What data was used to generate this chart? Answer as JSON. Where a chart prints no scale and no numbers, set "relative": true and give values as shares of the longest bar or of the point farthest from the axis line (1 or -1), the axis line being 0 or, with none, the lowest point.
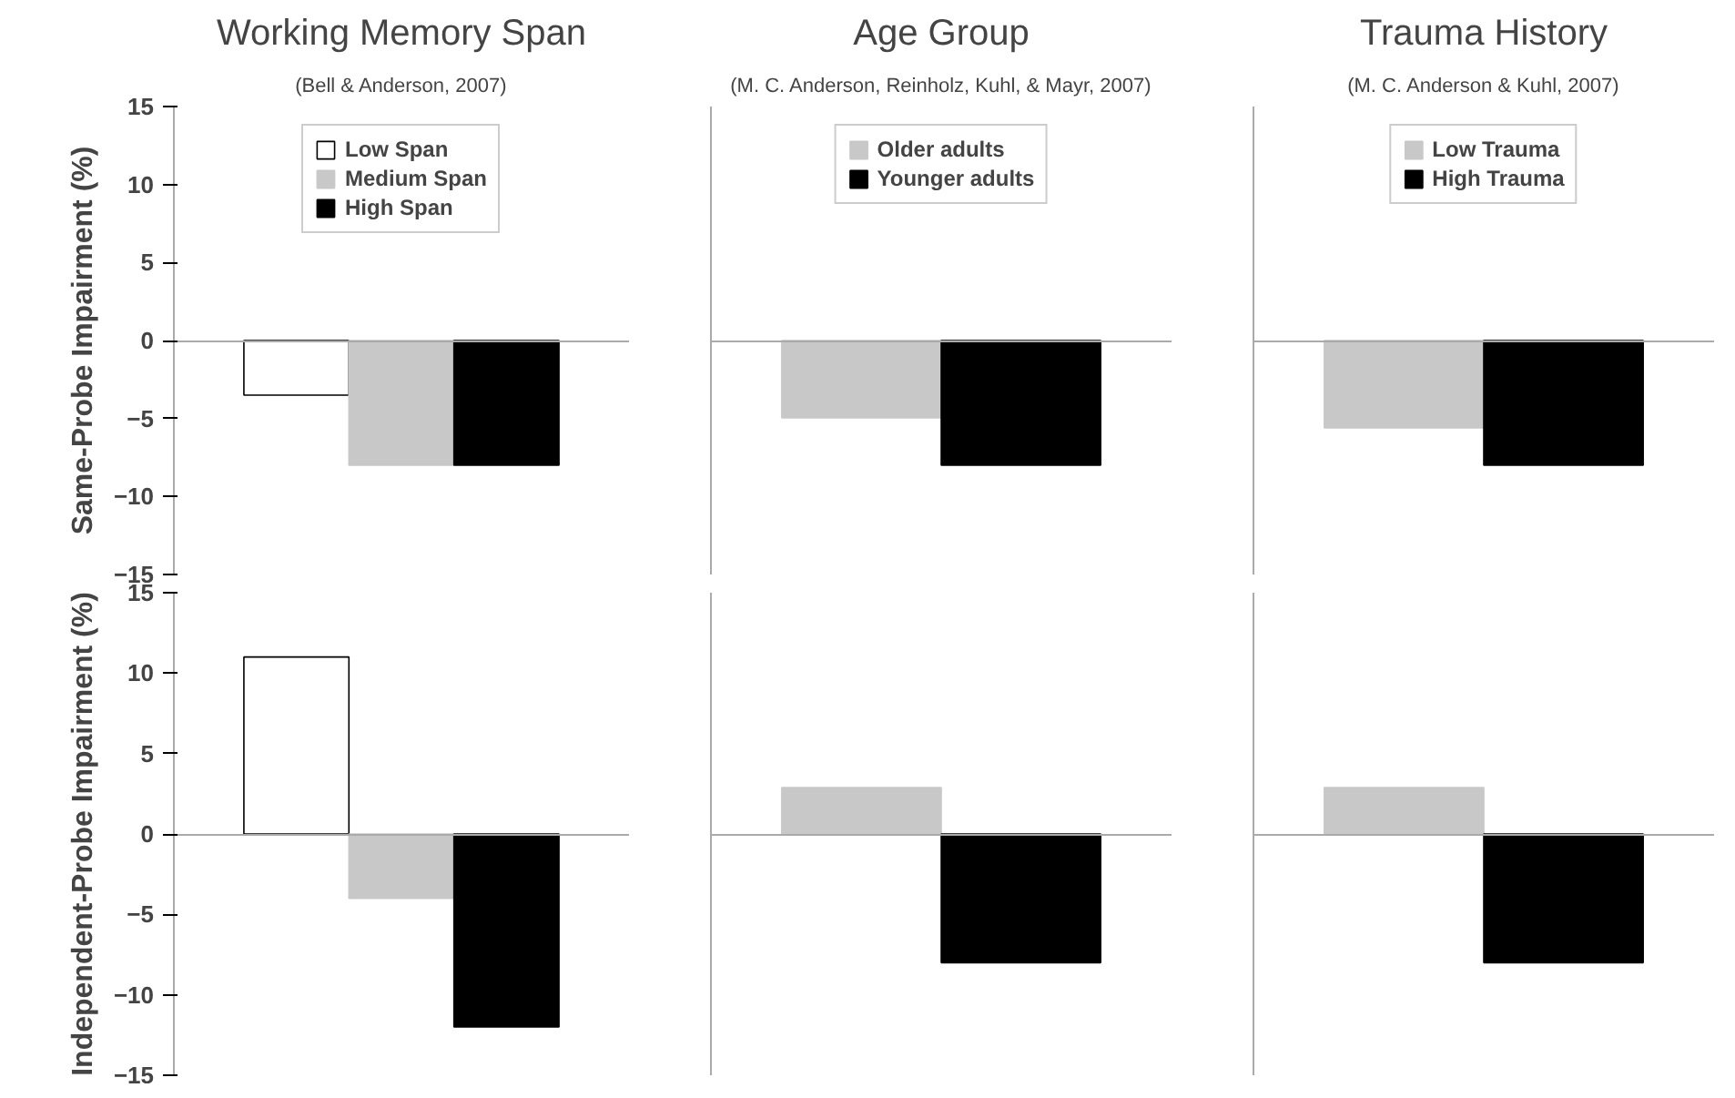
{
  "chart_data": [
    {
      "type": "bar",
      "title": "Working Memory Span",
      "subtitle": "(Bell & Anderson, 2007)",
      "ylabel": "Same-Probe Impairment (%)",
      "categories": [
        null
      ],
      "series": [
        {
          "name": "Low Span",
          "color": "#ffffff",
          "values": [
            -3.5
          ]
        },
        {
          "name": "Medium Span",
          "color": "#c8c8c8",
          "values": [
            -8
          ]
        },
        {
          "name": "High Span",
          "color": "#000000",
          "values": [
            -8
          ]
        }
      ],
      "ylim": [
        -15,
        15
      ],
      "yticks": [
        -15,
        -10,
        -5,
        0,
        5,
        10,
        15
      ],
      "legend": "top",
      "tick_labels": "y"
    },
    {
      "type": "bar",
      "title": "Age Group",
      "subtitle": "(M. C. Anderson, Reinholz, Kuhl, & Mayr, 2007)",
      "categories": [
        null
      ],
      "relative": true,
      "series": [
        {
          "name": "Older adults",
          "color": "#c8c8c8",
          "values": [
            -0.62
          ]
        },
        {
          "name": "Younger adults",
          "color": "#000000",
          "values": [
            -1
          ]
        }
      ],
      "legend": "top"
    },
    {
      "type": "bar",
      "title": "Trauma History",
      "subtitle": "(M. C. Anderson & Kuhl, 2007)",
      "categories": [
        null
      ],
      "relative": true,
      "series": [
        {
          "name": "Low Trauma",
          "color": "#c8c8c8",
          "values": [
            -0.7
          ]
        },
        {
          "name": "High Trauma",
          "color": "#000000",
          "values": [
            -1
          ]
        }
      ],
      "legend": "top"
    },
    {
      "type": "bar",
      "ylabel": "Independent-Probe Impairment (%)",
      "categories": [
        null
      ],
      "series": [
        {
          "color": "#ffffff",
          "values": [
            11
          ]
        },
        {
          "color": "#c8c8c8",
          "values": [
            -4
          ]
        },
        {
          "color": "#000000",
          "values": [
            -12
          ]
        }
      ],
      "ylim": [
        -15,
        15
      ],
      "yticks": [
        -15,
        -10,
        -5,
        0,
        5,
        10,
        15
      ],
      "tick_labels": "y"
    },
    {
      "type": "bar",
      "categories": [
        null
      ],
      "relative": true,
      "series": [
        {
          "color": "#c8c8c8",
          "values": [
            0.36
          ]
        },
        {
          "color": "#000000",
          "values": [
            -1
          ]
        }
      ]
    },
    {
      "type": "bar",
      "categories": [
        null
      ],
      "relative": true,
      "series": [
        {
          "color": "#c8c8c8",
          "values": [
            0.36
          ]
        },
        {
          "color": "#000000",
          "values": [
            -1
          ]
        }
      ]
    }
  ]
}
